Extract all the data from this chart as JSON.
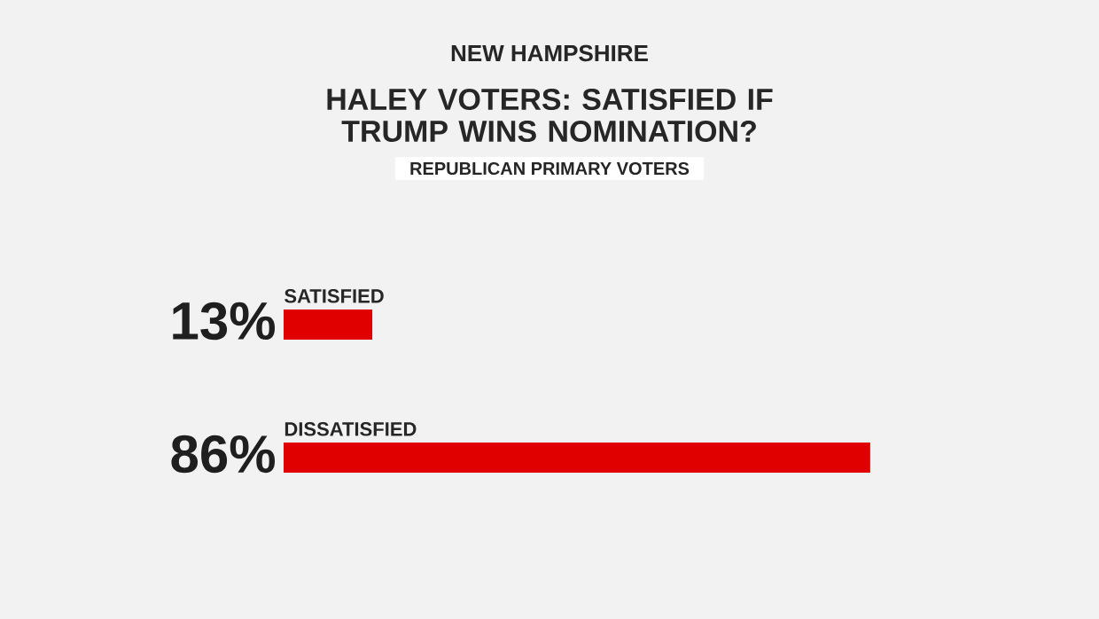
{
  "chart_data": {
    "type": "bar",
    "orientation": "horizontal",
    "title": "HALEY VOTERS: SATISFIED IF TRUMP WINS NOMINATION?",
    "subtitle": "REPUBLICAN PRIMARY VOTERS",
    "annotations": [
      "NEW HAMPSHIRE"
    ],
    "categories": [
      "SATISFIED",
      "DISSATISFIED"
    ],
    "values": [
      13,
      86
    ],
    "value_labels": [
      "13%",
      "86%"
    ],
    "color": "#e00000"
  }
}
